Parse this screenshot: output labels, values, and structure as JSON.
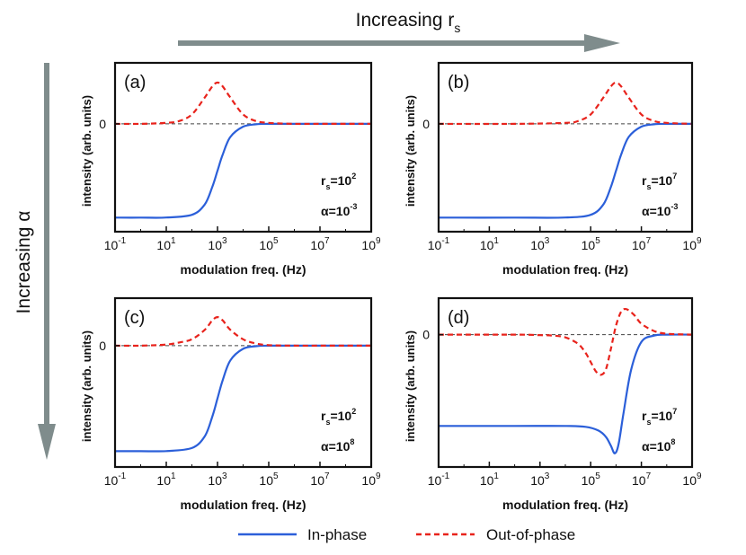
{
  "figure": {
    "top_arrow_label": "Increasing r",
    "top_arrow_sub": "s",
    "left_arrow_label": "Increasing α",
    "colors": {
      "in_phase": "#2b5fd9",
      "out_of_phase": "#e8231c",
      "arrow": "#7f8c8c",
      "zero_line": "#444444"
    }
  },
  "legend": [
    {
      "label": "In-phase",
      "style": "solid",
      "color": "#2b5fd9"
    },
    {
      "label": "Out-of-phase",
      "style": "dashed",
      "color": "#e8231c"
    }
  ],
  "chart_data": [
    {
      "type": "line",
      "panel": "(a)",
      "xlabel": "modulation freq. (Hz)",
      "ylabel": "intensity (arb. units)",
      "x_scale": "log10",
      "xlim": [
        -1,
        9
      ],
      "x_ticks": [
        {
          "base": "10",
          "exp": "-1",
          "v": -1
        },
        {
          "base": "10",
          "exp": "1",
          "v": 1
        },
        {
          "base": "10",
          "exp": "3",
          "v": 3
        },
        {
          "base": "10",
          "exp": "5",
          "v": 5
        },
        {
          "base": "10",
          "exp": "7",
          "v": 7
        },
        {
          "base": "10",
          "exp": "9",
          "v": 9
        }
      ],
      "ylim": [
        -1.15,
        0.65
      ],
      "y_ticks": [
        {
          "label": "0",
          "v": 0
        }
      ],
      "annotations": {
        "rs_base": "r",
        "rs_sub": "s",
        "rs_value": "=10",
        "rs_exp": "2",
        "alpha_text": "α=10",
        "alpha_exp": "-3"
      },
      "series": [
        {
          "name": "In-phase",
          "x": [
            -1,
            0,
            1,
            2,
            2.5,
            2.8,
            3,
            3.2,
            3.5,
            4,
            4.5,
            5,
            6,
            7,
            8,
            9
          ],
          "y": [
            -1,
            -1,
            -0.999,
            -0.97,
            -0.86,
            -0.67,
            -0.5,
            -0.33,
            -0.14,
            -0.03,
            -0.005,
            0,
            0,
            0,
            0,
            0
          ]
        },
        {
          "name": "Out-of-phase",
          "x": [
            -1,
            0,
            1,
            1.5,
            2,
            2.5,
            2.8,
            3,
            3.2,
            3.5,
            4,
            4.5,
            5,
            6,
            7,
            8,
            9
          ],
          "y": [
            0,
            0,
            0.01,
            0.03,
            0.1,
            0.28,
            0.4,
            0.44,
            0.4,
            0.28,
            0.1,
            0.03,
            0.01,
            0,
            0,
            0,
            0
          ]
        }
      ]
    },
    {
      "type": "line",
      "panel": "(b)",
      "xlabel": "modulation freq. (Hz)",
      "ylabel": "intensity (arb. units)",
      "x_scale": "log10",
      "xlim": [
        -1,
        9
      ],
      "x_ticks": [
        {
          "base": "10",
          "exp": "-1",
          "v": -1
        },
        {
          "base": "10",
          "exp": "1",
          "v": 1
        },
        {
          "base": "10",
          "exp": "3",
          "v": 3
        },
        {
          "base": "10",
          "exp": "5",
          "v": 5
        },
        {
          "base": "10",
          "exp": "7",
          "v": 7
        },
        {
          "base": "10",
          "exp": "9",
          "v": 9
        }
      ],
      "ylim": [
        -1.15,
        0.65
      ],
      "y_ticks": [
        {
          "label": "0",
          "v": 0
        }
      ],
      "annotations": {
        "rs_base": "r",
        "rs_sub": "s",
        "rs_value": "=10",
        "rs_exp": "7",
        "alpha_text": "α=10",
        "alpha_exp": "-3"
      },
      "series": [
        {
          "name": "In-phase",
          "x": [
            -1,
            2,
            4,
            5,
            5.5,
            5.8,
            6,
            6.2,
            6.5,
            7,
            7.5,
            8,
            9
          ],
          "y": [
            -1,
            -1,
            -0.999,
            -0.97,
            -0.86,
            -0.67,
            -0.5,
            -0.33,
            -0.14,
            -0.03,
            -0.005,
            0,
            0
          ]
        },
        {
          "name": "Out-of-phase",
          "x": [
            -1,
            2,
            4,
            4.5,
            5,
            5.5,
            5.8,
            6,
            6.2,
            6.5,
            7,
            7.5,
            8,
            9
          ],
          "y": [
            0,
            0,
            0.01,
            0.03,
            0.1,
            0.28,
            0.4,
            0.44,
            0.4,
            0.28,
            0.1,
            0.03,
            0.01,
            0
          ]
        }
      ]
    },
    {
      "type": "line",
      "panel": "(c)",
      "xlabel": "modulation freq. (Hz)",
      "ylabel": "intensity (arb. units)",
      "x_scale": "log10",
      "xlim": [
        -1,
        9
      ],
      "x_ticks": [
        {
          "base": "10",
          "exp": "-1",
          "v": -1
        },
        {
          "base": "10",
          "exp": "1",
          "v": 1
        },
        {
          "base": "10",
          "exp": "3",
          "v": 3
        },
        {
          "base": "10",
          "exp": "5",
          "v": 5
        },
        {
          "base": "10",
          "exp": "7",
          "v": 7
        },
        {
          "base": "10",
          "exp": "9",
          "v": 9
        }
      ],
      "ylim": [
        -1.15,
        0.45
      ],
      "y_ticks": [
        {
          "label": "0",
          "v": 0
        }
      ],
      "annotations": {
        "rs_base": "r",
        "rs_sub": "s",
        "rs_value": "=10",
        "rs_exp": "2",
        "alpha_text": "α=10",
        "alpha_exp": "8"
      },
      "series": [
        {
          "name": "In-phase",
          "x": [
            -1,
            0,
            1,
            2,
            2.5,
            2.8,
            3,
            3.2,
            3.5,
            4,
            4.5,
            5,
            6,
            7,
            8,
            9
          ],
          "y": [
            -1,
            -1,
            -0.999,
            -0.97,
            -0.86,
            -0.67,
            -0.5,
            -0.33,
            -0.14,
            -0.03,
            -0.005,
            0,
            0,
            0,
            0,
            0
          ]
        },
        {
          "name": "Out-of-phase",
          "x": [
            -1,
            0,
            1,
            1.5,
            2,
            2.5,
            2.8,
            3,
            3.2,
            3.5,
            4,
            4.5,
            5,
            6,
            7,
            8,
            9
          ],
          "y": [
            0,
            0,
            0.01,
            0.03,
            0.06,
            0.15,
            0.24,
            0.27,
            0.24,
            0.15,
            0.06,
            0.02,
            0.005,
            0,
            0,
            0,
            0
          ]
        }
      ]
    },
    {
      "type": "line",
      "panel": "(d)",
      "xlabel": "modulation freq. (Hz)",
      "ylabel": "intensity (arb. units)",
      "x_scale": "log10",
      "xlim": [
        -1,
        9
      ],
      "x_ticks": [
        {
          "base": "10",
          "exp": "-1",
          "v": -1
        },
        {
          "base": "10",
          "exp": "1",
          "v": 1
        },
        {
          "base": "10",
          "exp": "3",
          "v": 3
        },
        {
          "base": "10",
          "exp": "5",
          "v": 5
        },
        {
          "base": "10",
          "exp": "7",
          "v": 7
        },
        {
          "base": "10",
          "exp": "9",
          "v": 9
        }
      ],
      "ylim": [
        -1.45,
        0.4
      ],
      "y_ticks": [
        {
          "label": "0",
          "v": 0
        }
      ],
      "annotations": {
        "rs_base": "r",
        "rs_sub": "s",
        "rs_value": "=10",
        "rs_exp": "7",
        "alpha_text": "α=10",
        "alpha_exp": "8"
      },
      "series": [
        {
          "name": "In-phase",
          "x": [
            -1,
            2,
            4,
            4.8,
            5.3,
            5.6,
            5.8,
            5.95,
            6.1,
            6.3,
            6.6,
            7,
            7.5,
            8,
            9
          ],
          "y": [
            -1,
            -1,
            -1,
            -1.01,
            -1.05,
            -1.12,
            -1.22,
            -1.3,
            -1.2,
            -0.85,
            -0.38,
            -0.08,
            -0.01,
            0,
            0
          ]
        },
        {
          "name": "Out-of-phase",
          "x": [
            -1,
            2,
            3,
            3.5,
            4,
            4.5,
            4.8,
            5,
            5.2,
            5.4,
            5.6,
            5.8,
            6,
            6.2,
            6.4,
            6.7,
            7,
            7.5,
            8,
            9
          ],
          "y": [
            0,
            0,
            -0.005,
            -0.01,
            -0.03,
            -0.1,
            -0.2,
            -0.3,
            -0.4,
            -0.44,
            -0.38,
            -0.15,
            0.1,
            0.25,
            0.28,
            0.22,
            0.12,
            0.04,
            0.01,
            0
          ]
        }
      ]
    }
  ]
}
